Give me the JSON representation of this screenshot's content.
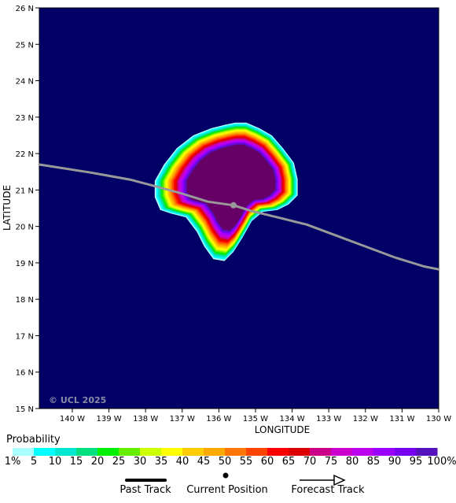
{
  "map": {
    "background_color": "#000066",
    "x_axis_title": "LONGITUDE",
    "y_axis_title": "LATITUDE",
    "lon_range": [
      -140.9,
      -130.0
    ],
    "lat_range": [
      15.0,
      26.0
    ],
    "lon_ticks": [
      {
        "value": -140,
        "label": "140 W"
      },
      {
        "value": -139,
        "label": "139 W"
      },
      {
        "value": -138,
        "label": "138 W"
      },
      {
        "value": -137,
        "label": "137 W"
      },
      {
        "value": -136,
        "label": "136 W"
      },
      {
        "value": -135,
        "label": "135 W"
      },
      {
        "value": -134,
        "label": "134 W"
      },
      {
        "value": -133,
        "label": "133 W"
      },
      {
        "value": -132,
        "label": "132 W"
      },
      {
        "value": -131,
        "label": "131 W"
      },
      {
        "value": -130,
        "label": "130 W"
      }
    ],
    "lat_ticks": [
      {
        "value": 15,
        "label": "15 N"
      },
      {
        "value": 16,
        "label": "16 N"
      },
      {
        "value": 17,
        "label": "17 N"
      },
      {
        "value": 18,
        "label": "18 N"
      },
      {
        "value": 19,
        "label": "19 N"
      },
      {
        "value": 20,
        "label": "20 N"
      },
      {
        "value": 21,
        "label": "21 N"
      },
      {
        "value": 22,
        "label": "22 N"
      },
      {
        "value": 23,
        "label": "23 N"
      },
      {
        "value": 24,
        "label": "24 N"
      },
      {
        "value": 25,
        "label": "25 N"
      },
      {
        "value": 26,
        "label": "26 N"
      }
    ],
    "copyright": "© UCL 2025",
    "probability_blob": {
      "outline": [
        [
          -135.55,
          22.85
        ],
        [
          -135.25,
          22.85
        ],
        [
          -134.9,
          22.7
        ],
        [
          -134.55,
          22.5
        ],
        [
          -134.25,
          22.15
        ],
        [
          -133.95,
          21.75
        ],
        [
          -133.85,
          21.3
        ],
        [
          -133.85,
          20.85
        ],
        [
          -134.1,
          20.6
        ],
        [
          -134.4,
          20.45
        ],
        [
          -134.8,
          20.4
        ],
        [
          -135.1,
          20.15
        ],
        [
          -135.35,
          19.7
        ],
        [
          -135.6,
          19.3
        ],
        [
          -135.85,
          19.05
        ],
        [
          -136.15,
          19.1
        ],
        [
          -136.4,
          19.45
        ],
        [
          -136.6,
          19.85
        ],
        [
          -136.9,
          20.25
        ],
        [
          -137.3,
          20.35
        ],
        [
          -137.6,
          20.45
        ],
        [
          -137.75,
          20.8
        ],
        [
          -137.75,
          21.25
        ],
        [
          -137.5,
          21.7
        ],
        [
          -137.15,
          22.15
        ],
        [
          -136.7,
          22.5
        ],
        [
          -136.2,
          22.7
        ],
        [
          -135.8,
          22.8
        ]
      ],
      "center": [
        -135.45,
        21.25
      ],
      "peak_probability": 100
    },
    "track": [
      [
        -140.9,
        21.7
      ],
      [
        -139.5,
        21.48
      ],
      [
        -138.4,
        21.28
      ],
      [
        -137.8,
        21.12
      ],
      [
        -137.0,
        20.9
      ],
      [
        -136.3,
        20.68
      ],
      [
        -135.6,
        20.58
      ],
      [
        -135.1,
        20.42
      ],
      [
        -134.4,
        20.25
      ],
      [
        -133.6,
        20.05
      ],
      [
        -132.8,
        19.75
      ],
      [
        -132.0,
        19.45
      ],
      [
        -131.2,
        19.15
      ],
      [
        -130.4,
        18.9
      ],
      [
        -130.0,
        18.82
      ]
    ],
    "current_position": [
      -135.6,
      20.58
    ],
    "track_color": "#999999"
  },
  "legend": {
    "title": "Probability",
    "colors": [
      "#aaffff",
      "#00ffff",
      "#00e8d0",
      "#00e080",
      "#00ee00",
      "#66ee00",
      "#ccff00",
      "#ffff00",
      "#ffcc00",
      "#ffaa00",
      "#ff7700",
      "#ff4400",
      "#ff0000",
      "#dd0000",
      "#cc0088",
      "#cc00cc",
      "#bb00ee",
      "#9900ff",
      "#7700ee",
      "#5511bb",
      "#660066"
    ],
    "labels": [
      "1%",
      "5",
      "10",
      "15",
      "20",
      "25",
      "30",
      "35",
      "40",
      "45",
      "50",
      "55",
      "60",
      "65",
      "70",
      "75",
      "80",
      "85",
      "90",
      "95",
      "100%"
    ]
  },
  "key": {
    "past_track": "Past Track",
    "current_position": "Current Position",
    "forecast_track": "Forecast Track"
  }
}
